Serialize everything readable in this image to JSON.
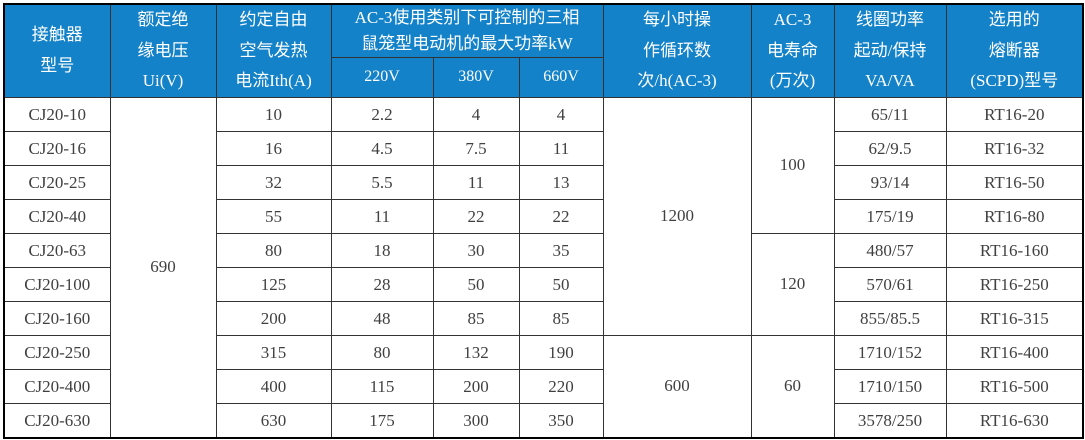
{
  "colors": {
    "header_bg": "#1482C8",
    "header_text": "#FFFFFF",
    "grid_line": "#333333",
    "outer_border": "#000000",
    "body_text": "#404040",
    "body_bg": "#FFFFFF"
  },
  "table": {
    "header": {
      "model": [
        "接触器",
        "型号"
      ],
      "ui": [
        "额定绝",
        "缘电压",
        "Ui(V)"
      ],
      "ith": [
        "约定自由",
        "空气发热",
        "电流Ith(A)"
      ],
      "power_group": [
        "AC-3使用类别下可控制的三相",
        "鼠笼型电动机的最大功率kW"
      ],
      "power_cols": [
        "220V",
        "380V",
        "660V"
      ],
      "cycles": [
        "每小时操",
        "作循环数",
        "次/h(AC-3)"
      ],
      "life": [
        "AC-3",
        "电寿命",
        "(万次)"
      ],
      "coil": [
        "线圈功率",
        "起动/保持",
        "VA/VA"
      ],
      "fuse": [
        "选用的",
        "熔断器",
        "(SCPD)型号"
      ]
    },
    "spans": {
      "rated_insulation_voltage": "690",
      "cycles_top": "1200",
      "cycles_bottom": "600",
      "life_top": "100",
      "life_mid": "120",
      "life_bottom": "60"
    },
    "rows": [
      {
        "model": "CJ20-10",
        "ith": "10",
        "p220": "2.2",
        "p380": "4",
        "p660": "4",
        "coil": "65/11",
        "fuse": "RT16-20"
      },
      {
        "model": "CJ20-16",
        "ith": "16",
        "p220": "4.5",
        "p380": "7.5",
        "p660": "11",
        "coil": "62/9.5",
        "fuse": "RT16-32"
      },
      {
        "model": "CJ20-25",
        "ith": "32",
        "p220": "5.5",
        "p380": "11",
        "p660": "13",
        "coil": "93/14",
        "fuse": "RT16-50"
      },
      {
        "model": "CJ20-40",
        "ith": "55",
        "p220": "11",
        "p380": "22",
        "p660": "22",
        "coil": "175/19",
        "fuse": "RT16-80"
      },
      {
        "model": "CJ20-63",
        "ith": "80",
        "p220": "18",
        "p380": "30",
        "p660": "35",
        "coil": "480/57",
        "fuse": "RT16-160"
      },
      {
        "model": "CJ20-100",
        "ith": "125",
        "p220": "28",
        "p380": "50",
        "p660": "50",
        "coil": "570/61",
        "fuse": "RT16-250"
      },
      {
        "model": "CJ20-160",
        "ith": "200",
        "p220": "48",
        "p380": "85",
        "p660": "85",
        "coil": "855/85.5",
        "fuse": "RT16-315"
      },
      {
        "model": "CJ20-250",
        "ith": "315",
        "p220": "80",
        "p380": "132",
        "p660": "190",
        "coil": "1710/152",
        "fuse": "RT16-400"
      },
      {
        "model": "CJ20-400",
        "ith": "400",
        "p220": "115",
        "p380": "200",
        "p660": "220",
        "coil": "1710/150",
        "fuse": "RT16-500"
      },
      {
        "model": "CJ20-630",
        "ith": "630",
        "p220": "175",
        "p380": "300",
        "p660": "350",
        "coil": "3578/250",
        "fuse": "RT16-630"
      }
    ]
  }
}
